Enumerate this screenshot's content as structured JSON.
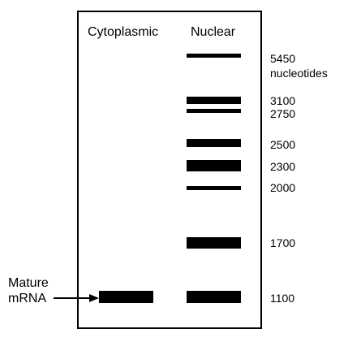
{
  "lanes": {
    "cytoplasmic": "Cytoplasmic",
    "nuclear": "Nuclear"
  },
  "size_labels": [
    {
      "size": "5450",
      "unit": "nucleotides"
    },
    {
      "size": "3100"
    },
    {
      "size": "2750"
    },
    {
      "size": "2500"
    },
    {
      "size": "2300"
    },
    {
      "size": "2000"
    },
    {
      "size": "1700"
    },
    {
      "size": "1100"
    }
  ],
  "mature_label": {
    "line1": "Mature",
    "line2": "mRNA"
  }
}
